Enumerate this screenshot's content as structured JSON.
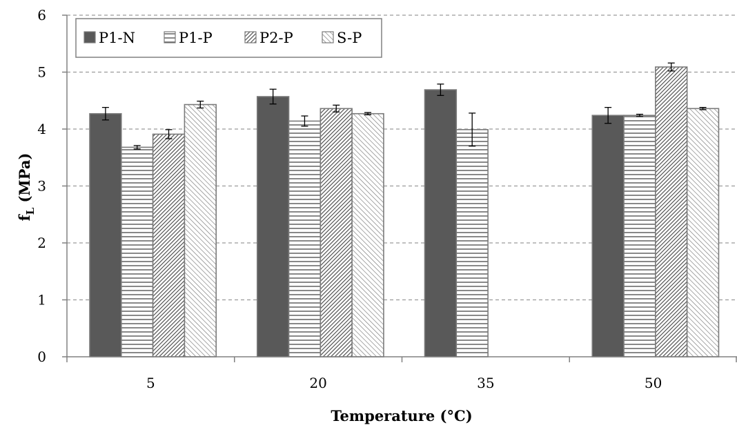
{
  "chart_data": {
    "type": "bar",
    "xlabel": "Temperature (°C)",
    "ylabel_main": "f",
    "ylabel_sub": "L",
    "ylabel_unit": " (MPa)",
    "categories": [
      "5",
      "20",
      "35",
      "50"
    ],
    "ylim": [
      0,
      6
    ],
    "yticks": [
      "0",
      "1",
      "2",
      "3",
      "4",
      "5",
      "6"
    ],
    "grid": true,
    "legend_position": "top-left",
    "series": [
      {
        "name": "P1-N",
        "pattern": "solid",
        "color": "#595959",
        "values": [
          4.27,
          4.57,
          4.69,
          4.24
        ],
        "errors": [
          0.11,
          0.13,
          0.1,
          0.14
        ]
      },
      {
        "name": "P1-P",
        "pattern": "horizontal",
        "color": "#595959",
        "values": [
          3.68,
          4.14,
          3.99,
          4.24
        ],
        "errors": [
          0.03,
          0.09,
          0.29,
          0.02
        ]
      },
      {
        "name": "P2-P",
        "pattern": "dense-diagonal",
        "color": "#595959",
        "values": [
          3.91,
          4.36,
          null,
          5.09
        ],
        "errors": [
          0.08,
          0.06,
          null,
          0.07
        ]
      },
      {
        "name": "S-P",
        "pattern": "light-diagonal",
        "color": "#7f7f7f",
        "values": [
          4.43,
          4.27,
          null,
          4.36
        ],
        "errors": [
          0.06,
          0.02,
          null,
          0.02
        ]
      }
    ]
  }
}
